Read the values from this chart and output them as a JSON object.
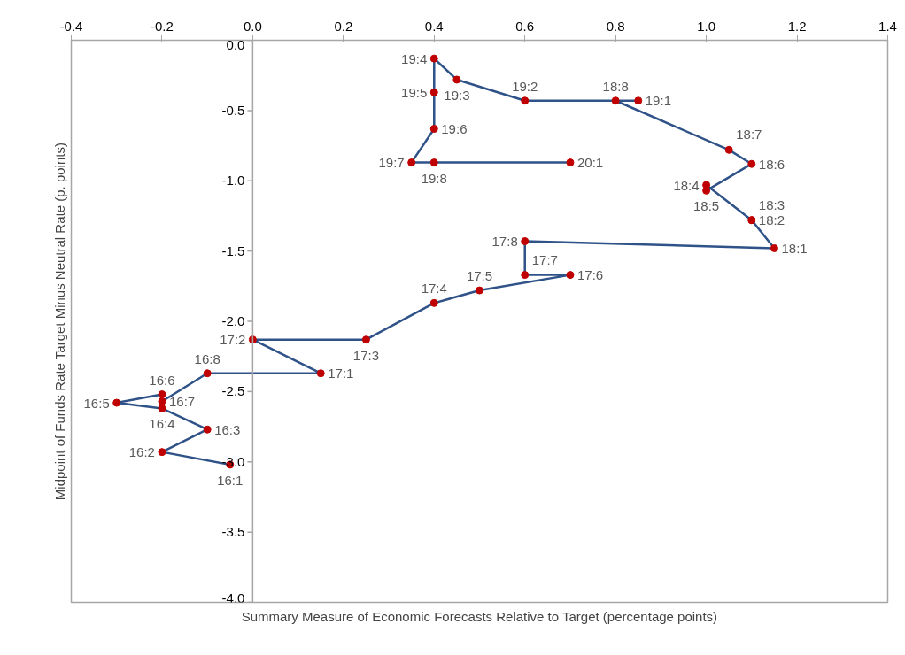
{
  "chart_data": {
    "type": "line",
    "xlabel": "Summary Measure of Economic Forecasts Relative to Target (percentage points)",
    "ylabel": "Midpoint of Funds Rate Target Minus Neutral Rate (p. points)",
    "xlim": [
      -0.4,
      1.4
    ],
    "xticks": [
      {
        "value": -0.4,
        "label": "-0.4"
      },
      {
        "value": -0.2,
        "label": "-0.2"
      },
      {
        "value": 0,
        "label": "0.0"
      },
      {
        "value": 0.2,
        "label": "0.2"
      },
      {
        "value": 0.4,
        "label": "0.4"
      },
      {
        "value": 0.6,
        "label": "0.6"
      },
      {
        "value": 0.8,
        "label": "0.8"
      },
      {
        "value": 1.0,
        "label": "1.0"
      },
      {
        "value": 1.2,
        "label": "1.2"
      },
      {
        "value": 1.4,
        "label": "1.4"
      }
    ],
    "ylim": [
      -4.0,
      0.0
    ],
    "yticks": [
      {
        "value": 0,
        "label": "0.0"
      },
      {
        "value": -0.5,
        "label": "-0.5"
      },
      {
        "value": -1.0,
        "label": "-1.0"
      },
      {
        "value": -1.5,
        "label": "-1.5"
      },
      {
        "value": -2.0,
        "label": "-2.0"
      },
      {
        "value": -2.5,
        "label": "-2.5"
      },
      {
        "value": -3.0,
        "label": "-3.0"
      },
      {
        "value": -3.5,
        "label": "-3.5"
      },
      {
        "value": -4.0,
        "label": "-4.0"
      }
    ],
    "grid": false,
    "marker": "circle",
    "line_style": "solid",
    "series": [
      {
        "color": "#2f5288",
        "colors": [
          "#c00000",
          "#c00000",
          "#c00000",
          "#c00000",
          "#c00000",
          "#c00000",
          "#c00000",
          "#c00000",
          "#c00000",
          "#c00000",
          "#c00000",
          "#c00000",
          "#c00000",
          "#c00000",
          "#c00000",
          "#c00000",
          "#c00000",
          "#c00000",
          "#c00000",
          "#c00000",
          "#c00000",
          "#c00000",
          "#c00000",
          "#c00000",
          "#c00000",
          "#c00000",
          "#c00000",
          "#c00000",
          "#c00000",
          "#c00000",
          "#c00000",
          "#c00000",
          "#c00000"
        ],
        "x": [
          -0.05,
          -0.2,
          -0.1,
          -0.2,
          -0.3,
          -0.2,
          -0.2,
          -0.1,
          0.15,
          0.0,
          0.25,
          0.4,
          0.5,
          0.7,
          0.6,
          0.6,
          1.15,
          1.1,
          1.1,
          1.0,
          1.0,
          1.1,
          1.05,
          0.8,
          0.85,
          0.6,
          0.45,
          0.4,
          0.4,
          0.4,
          0.35,
          0.4,
          0.7
        ],
        "values": [
          -3.02,
          -2.93,
          -2.77,
          -2.62,
          -2.58,
          -2.52,
          -2.57,
          -2.37,
          -2.37,
          -2.13,
          -2.13,
          -1.87,
          -1.78,
          -1.67,
          -1.67,
          -1.43,
          -1.48,
          -1.28,
          -1.28,
          -1.03,
          -1.07,
          -0.88,
          -0.78,
          -0.43,
          -0.43,
          -0.43,
          -0.28,
          -0.13,
          -0.37,
          -0.63,
          -0.87,
          -0.87,
          -0.87
        ]
      }
    ],
    "annotations": [
      {
        "text": "16:1",
        "x": -0.05,
        "y": -3.02
      },
      {
        "text": "16:2",
        "x": -0.2,
        "y": -2.93
      },
      {
        "text": "16:3",
        "x": -0.1,
        "y": -2.77
      },
      {
        "text": "16:4",
        "x": -0.2,
        "y": -2.62
      },
      {
        "text": "16:5",
        "x": -0.3,
        "y": -2.58
      },
      {
        "text": "16:6",
        "x": -0.2,
        "y": -2.52
      },
      {
        "text": "16:7",
        "x": -0.2,
        "y": -2.57
      },
      {
        "text": "16:8",
        "x": -0.1,
        "y": -2.37
      },
      {
        "text": "17:1",
        "x": 0.15,
        "y": -2.37
      },
      {
        "text": "17:2",
        "x": 0.0,
        "y": -2.13
      },
      {
        "text": "17:3",
        "x": 0.25,
        "y": -2.13
      },
      {
        "text": "17:4",
        "x": 0.4,
        "y": -1.87
      },
      {
        "text": "17:5",
        "x": 0.5,
        "y": -1.78
      },
      {
        "text": "17:6",
        "x": 0.7,
        "y": -1.67
      },
      {
        "text": "17:7",
        "x": 0.6,
        "y": -1.67
      },
      {
        "text": "17:8",
        "x": 0.6,
        "y": -1.43
      },
      {
        "text": "18:1",
        "x": 1.15,
        "y": -1.48
      },
      {
        "text": "18:2",
        "x": 1.1,
        "y": -1.28
      },
      {
        "text": "18:3",
        "x": 1.1,
        "y": -1.28
      },
      {
        "text": "18:4",
        "x": 1.0,
        "y": -1.03
      },
      {
        "text": "18:5",
        "x": 1.0,
        "y": -1.07
      },
      {
        "text": "18:6",
        "x": 1.1,
        "y": -0.88
      },
      {
        "text": "18:7",
        "x": 1.05,
        "y": -0.78
      },
      {
        "text": "18:8",
        "x": 0.8,
        "y": -0.43
      },
      {
        "text": "19:1",
        "x": 0.85,
        "y": -0.43
      },
      {
        "text": "19:2",
        "x": 0.6,
        "y": -0.43
      },
      {
        "text": "19:3",
        "x": 0.45,
        "y": -0.28
      },
      {
        "text": "19:4",
        "x": 0.4,
        "y": -0.13
      },
      {
        "text": "19:5",
        "x": 0.4,
        "y": -0.37
      },
      {
        "text": "19:6",
        "x": 0.4,
        "y": -0.63
      },
      {
        "text": "19:7",
        "x": 0.35,
        "y": -0.87
      },
      {
        "text": "19:8",
        "x": 0.4,
        "y": -0.87
      },
      {
        "text": "20:1",
        "x": 0.7,
        "y": -0.87
      }
    ]
  }
}
